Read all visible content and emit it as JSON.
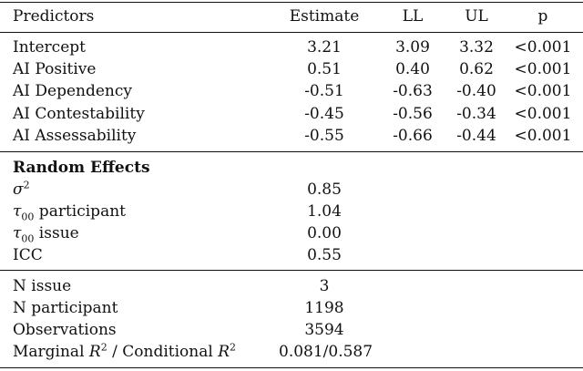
{
  "header": [
    "Predictors",
    "Estimate",
    "LL",
    "UL",
    "p"
  ],
  "fixed_effects": [
    {
      "predictor": "Intercept",
      "estimate": "3.21",
      "ll": "3.09",
      "ul": "3.32",
      "p": "<0.001"
    },
    {
      "predictor": "AI Positive",
      "estimate": "0.51",
      "ll": "0.40",
      "ul": "0.62",
      "p": "<0.001"
    },
    {
      "predictor": "AI Dependency",
      "estimate": "-0.51",
      "ll": "-0.63",
      "ul": "-0.40",
      "p": "<0.001"
    },
    {
      "predictor": "AI Contestability",
      "estimate": "-0.45",
      "ll": "-0.56",
      "ul": "-0.34",
      "p": "<0.001"
    },
    {
      "predictor": "AI Assessability",
      "estimate": "-0.55",
      "ll": "-0.66",
      "ul": "-0.44",
      "p": "<0.001"
    }
  ],
  "random_effects": {
    "title": "Random Effects",
    "sigma2": {
      "value": "0.85"
    },
    "tau_participant": {
      "label": " participant",
      "value": "1.04"
    },
    "tau_issue": {
      "label": " issue",
      "value": "0.00"
    },
    "icc": {
      "label": "ICC",
      "value": "0.55"
    }
  },
  "model_stats": {
    "n_issue": {
      "label": "N issue",
      "value": "3"
    },
    "n_participant": {
      "label": "N participant",
      "value": "1198"
    },
    "observations": {
      "label": "Observations",
      "value": "3594"
    },
    "r2": {
      "marginal_label": "Marginal ",
      "separator": " / ",
      "conditional_label": "Conditional ",
      "value": "0.081/0.587"
    }
  }
}
